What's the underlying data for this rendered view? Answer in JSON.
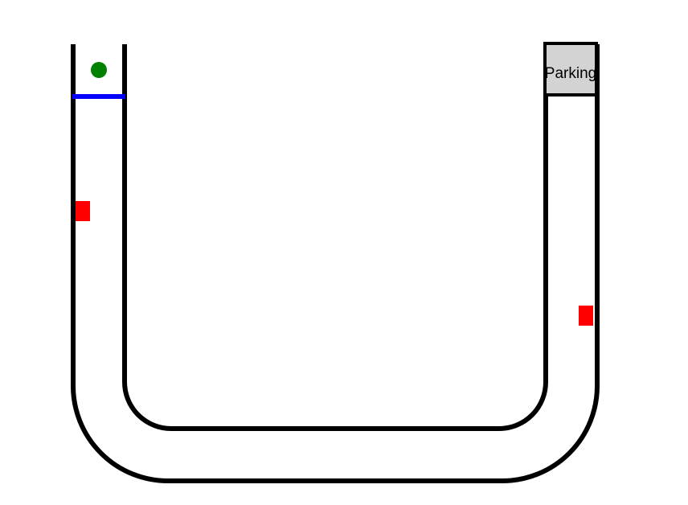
{
  "game": {
    "parking_label": "Parking",
    "player": {
      "shape": "circle",
      "color": "#008000"
    },
    "start_line": {
      "color": "#0000ff"
    },
    "obstacles": [
      {
        "shape": "square",
        "color": "#ff0000",
        "lane": "left"
      },
      {
        "shape": "square",
        "color": "#ff0000",
        "lane": "right"
      }
    ],
    "parking_spot": {
      "fill": "#d3d3d3",
      "border": "#000000"
    },
    "track": {
      "wall_color": "#000000",
      "surface": "#ffffff"
    }
  }
}
